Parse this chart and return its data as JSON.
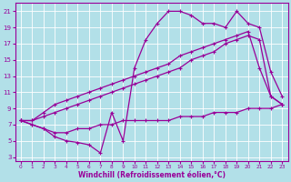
{
  "xlabel": "Windchill (Refroidissement éolien,°C)",
  "line_color": "#990099",
  "bg_color": "#b2e0e8",
  "grid_color": "#ffffff",
  "xlim": [
    -0.5,
    23.5
  ],
  "ylim": [
    2.5,
    22
  ],
  "yticks": [
    3,
    5,
    7,
    9,
    11,
    13,
    15,
    17,
    19,
    21
  ],
  "xticks": [
    0,
    1,
    2,
    3,
    4,
    5,
    6,
    7,
    8,
    9,
    10,
    11,
    12,
    13,
    14,
    15,
    16,
    17,
    18,
    19,
    20,
    21,
    22,
    23
  ],
  "line1_x": [
    0,
    1,
    2,
    3,
    4,
    5,
    6,
    7,
    8,
    9,
    10,
    11,
    12,
    13,
    14,
    15,
    16,
    17,
    18,
    19,
    20,
    21,
    22,
    23
  ],
  "line1_y": [
    7.5,
    7.0,
    6.5,
    5.5,
    5.0,
    4.8,
    4.5,
    3.5,
    8.5,
    5.0,
    14.0,
    17.5,
    19.5,
    21.0,
    21.0,
    20.5,
    19.5,
    19.5,
    19.0,
    21.0,
    19.5,
    19.0,
    13.5,
    10.5
  ],
  "line2_x": [
    0,
    1,
    2,
    3,
    4,
    5,
    6,
    7,
    8,
    9,
    10,
    11,
    12,
    13,
    14,
    15,
    16,
    17,
    18,
    19,
    20,
    21,
    22,
    23
  ],
  "line2_y": [
    7.5,
    7.5,
    8.0,
    8.5,
    9.0,
    9.5,
    10.0,
    10.5,
    11.0,
    11.5,
    12.0,
    12.5,
    13.0,
    13.5,
    14.0,
    15.0,
    15.5,
    16.0,
    17.0,
    17.5,
    18.0,
    17.5,
    10.5,
    9.5
  ],
  "line3_x": [
    0,
    1,
    2,
    3,
    4,
    5,
    6,
    7,
    8,
    9,
    10,
    11,
    12,
    13,
    14,
    15,
    16,
    17,
    18,
    19,
    20,
    21,
    22,
    23
  ],
  "line3_y": [
    7.5,
    7.5,
    8.5,
    9.5,
    10.0,
    10.5,
    11.0,
    11.5,
    12.0,
    12.5,
    13.0,
    13.5,
    14.0,
    14.5,
    15.5,
    16.0,
    16.5,
    17.0,
    17.5,
    18.0,
    18.5,
    14.0,
    10.5,
    9.5
  ],
  "line4_x": [
    0,
    1,
    2,
    3,
    4,
    5,
    6,
    7,
    8,
    9,
    10,
    11,
    12,
    13,
    14,
    15,
    16,
    17,
    18,
    19,
    20,
    21,
    22,
    23
  ],
  "line4_y": [
    7.5,
    7.0,
    6.5,
    6.0,
    6.0,
    6.5,
    6.5,
    7.0,
    7.0,
    7.5,
    7.5,
    7.5,
    7.5,
    7.5,
    8.0,
    8.0,
    8.0,
    8.5,
    8.5,
    8.5,
    9.0,
    9.0,
    9.0,
    9.5
  ]
}
